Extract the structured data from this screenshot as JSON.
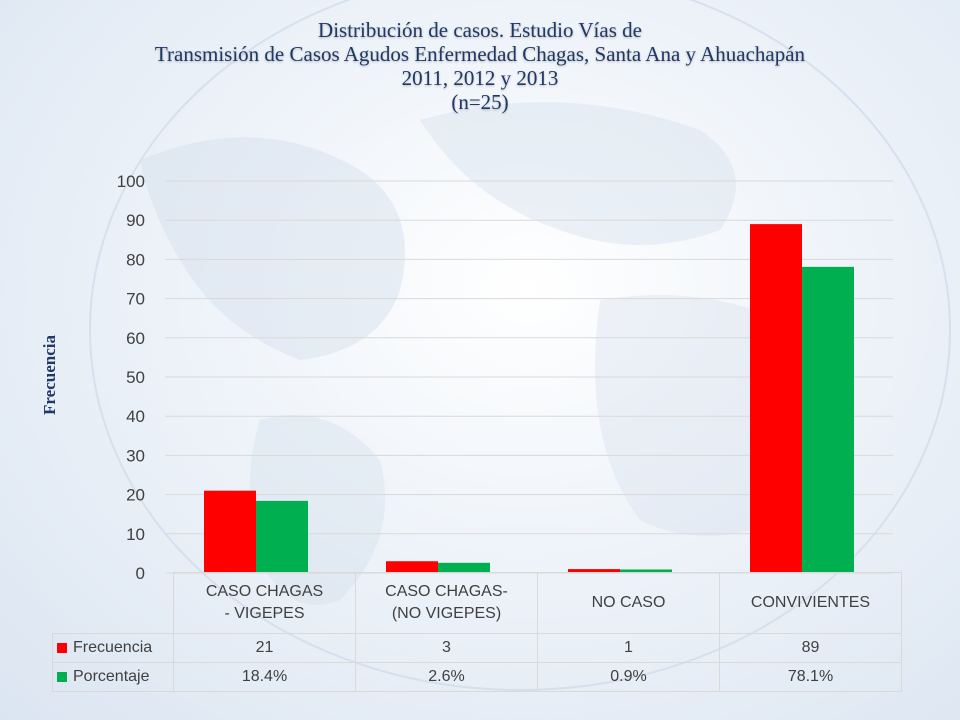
{
  "title_lines": [
    "Distribución de casos. Estudio Vías de",
    "Transmisión de Casos Agudos Enfermedad Chagas, Santa Ana y Ahuachapán",
    "2011, 2012 y 2013",
    "(n=25)"
  ],
  "colors": {
    "frecuencia": "#ff0000",
    "porcentaje": "#00b050",
    "title": "#1f3864"
  },
  "chart_data": {
    "type": "bar",
    "title": "Distribución de casos. Estudio Vías de Transmisión de Casos Agudos Enfermedad Chagas, Santa Ana y Ahuachapán 2011, 2012 y 2013 (n=25)",
    "ylabel": "Frecuencia",
    "xlabel": "",
    "ylim": [
      0,
      100
    ],
    "yticks": [
      "0",
      "10",
      "20",
      "30",
      "40",
      "50",
      "60",
      "70",
      "80",
      "90",
      "100"
    ],
    "grid": true,
    "categories": [
      [
        "CASO CHAGAS",
        "- VIGEPES"
      ],
      [
        "CASO CHAGAS-",
        "(NO VIGEPES)"
      ],
      [
        "NO CASO"
      ],
      [
        "CONVIVIENTES"
      ]
    ],
    "series": [
      {
        "name": "Frecuencia",
        "values": [
          21,
          3,
          1,
          89
        ],
        "labels": [
          "21",
          "3",
          "1",
          "89"
        ]
      },
      {
        "name": "Porcentaje",
        "values": [
          18.4,
          2.6,
          0.9,
          78.1
        ],
        "labels": [
          "18.4%",
          "2.6%",
          "0.9%",
          "78.1%"
        ]
      }
    ],
    "legend": "data-table"
  }
}
